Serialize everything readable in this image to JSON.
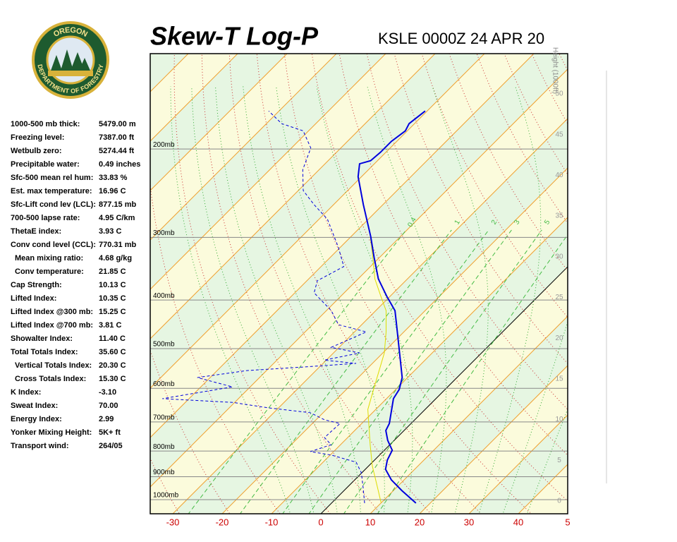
{
  "logo": {
    "top": "OREGON",
    "bottom": "DEPARTMENT OF FORESTRY"
  },
  "indices": [
    {
      "label": "1000-500 mb thick:",
      "value": "5479.00 m"
    },
    {
      "label": "Freezing level:",
      "value": "7387.00 ft"
    },
    {
      "label": "Wetbulb zero:",
      "value": "5274.44 ft"
    },
    {
      "label": "Precipitable water:",
      "value": "0.49 inches"
    },
    {
      "label": "Sfc-500 mean rel hum:",
      "value": "33.83 %"
    },
    {
      "label": "Est. max temperature:",
      "value": "16.96 C"
    },
    {
      "label": "Sfc-Lift cond lev (LCL):",
      "value": "877.15 mb"
    },
    {
      "label": "700-500 lapse rate:",
      "value": "4.95 C/km"
    },
    {
      "label": "ThetaE index:",
      "value": "3.93 C"
    },
    {
      "label": "Conv cond level (CCL):",
      "value": "770.31 mb"
    },
    {
      "label": "Mean mixing ratio:",
      "value": "4.68 g/kg"
    },
    {
      "label": "Conv temperature:",
      "value": "21.85 C"
    },
    {
      "label": "Cap Strength:",
      "value": "10.13 C"
    },
    {
      "label": "Lifted Index:",
      "value": "10.35 C"
    },
    {
      "label": "Lifted Index @300 mb:",
      "value": "15.25 C"
    },
    {
      "label": "Lifted Index @700 mb:",
      "value": "3.81 C"
    },
    {
      "label": "Showalter Index:",
      "value": "11.40 C"
    },
    {
      "label": "Total Totals Index:",
      "value": "35.60 C"
    },
    {
      "label": "Vertical Totals Index:",
      "value": "20.30 C"
    },
    {
      "label": "Cross Totals Index:",
      "value": "15.30 C"
    },
    {
      "label": "K Index:",
      "value": "-3.10"
    },
    {
      "label": "Sweat Index:",
      "value": "70.00"
    },
    {
      "label": "Energy Index:",
      "value": "2.99"
    },
    {
      "label": "Yonker Mixing Height:",
      "value": "5K+ ft"
    },
    {
      "label": "Transport wind:",
      "value": "264/05"
    }
  ],
  "chart_data": {
    "type": "skewt",
    "title": "Skew-T Log-P",
    "subtitle": "KSLE 0000Z 24 APR 20",
    "height_label": "Height (1000ft)",
    "xticks": [
      -30,
      -20,
      -10,
      0,
      10,
      20,
      30,
      40,
      {
        "value": 50,
        "label": "5"
      }
    ],
    "pressure_levels": [
      {
        "value": 200,
        "label": "200mb"
      },
      {
        "value": 300,
        "label": "300mb"
      },
      {
        "value": 400,
        "label": "400mb"
      },
      {
        "value": 500,
        "label": "500mb"
      },
      {
        "value": 600,
        "label": "600mb"
      },
      {
        "value": 700,
        "label": "700mb"
      },
      {
        "value": 800,
        "label": "800mb"
      },
      {
        "value": 900,
        "label": "900mb"
      },
      {
        "value": 1000,
        "label": "1000mb"
      }
    ],
    "height_ticks": [
      0,
      5,
      10,
      15,
      20,
      25,
      30,
      35,
      40,
      45,
      50
    ],
    "mixing_ratios": [
      0.4,
      1,
      2,
      3,
      5,
      8
    ],
    "temperature": {
      "color": "#0000dd",
      "pressure": [
        1016,
        959,
        913,
        870,
        834,
        797,
        762,
        728,
        705,
        629,
        603,
        571,
        527,
        441,
        420,
        393,
        363,
        329,
        299,
        258,
        227,
        214,
        211,
        203,
        193,
        184,
        178,
        168
      ],
      "values": [
        17.1,
        11.7,
        7.4,
        4.1,
        2.6,
        1.6,
        -1.3,
        -3.7,
        -4.4,
        -8.6,
        -9.3,
        -11.1,
        -15.0,
        -23.7,
        -26.1,
        -30.7,
        -35.9,
        -41.1,
        -46.0,
        -54.0,
        -60.7,
        -63.0,
        -61.4,
        -61.1,
        -61.1,
        -60.4,
        -61.1,
        -60.4
      ]
    },
    "dewpoint": {
      "color": "#0000dd",
      "pressure": [
        1016,
        943,
        884,
        842,
        815,
        802,
        777,
        752,
        705,
        693,
        671,
        656,
        640,
        629,
        596,
        571,
        553,
        544,
        535,
        527,
        510,
        497,
        463,
        448,
        420,
        387,
        366,
        343,
        314,
        276,
        258,
        242,
        220,
        199,
        184,
        178,
        168
      ],
      "values": [
        6.7,
        3.1,
        -0.1,
        -3.3,
        -9.7,
        -14.7,
        -11.9,
        -14.7,
        -14.4,
        -18.3,
        -22.6,
        -32.1,
        -40.4,
        -55.4,
        -43.6,
        -52.6,
        -44.0,
        -33.3,
        -23.3,
        -30.4,
        -24.7,
        -31.6,
        -27.6,
        -34.7,
        -39.0,
        -46.1,
        -47.9,
        -45.4,
        -50.4,
        -58.3,
        -64.0,
        -69.0,
        -73.3,
        -76.1,
        -81.1,
        -86.9,
        -92.1
      ]
    },
    "parcel": {
      "color": "#dddd00",
      "pressure": [
        1013,
        943,
        856,
        777,
        661,
        599,
        510,
        463,
        420,
        393,
        363,
        324,
        299
      ],
      "values": [
        9.9,
        6.0,
        0.7,
        -4.0,
        -11.6,
        -14.7,
        -19.7,
        -23.6,
        -27.9,
        -31.9,
        -36.6,
        -42.1,
        -46.1
      ]
    }
  }
}
